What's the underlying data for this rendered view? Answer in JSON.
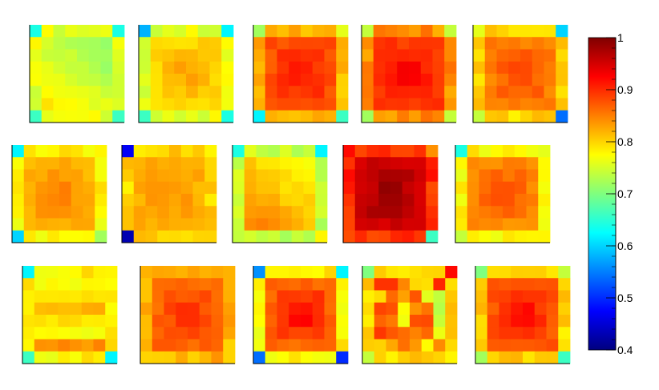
{
  "chart_data": {
    "type": "heatmap",
    "grid_size": 8,
    "panel_count": 15,
    "title": "",
    "colorbar": {
      "range": [
        0.4,
        1.0
      ],
      "ticks": [
        0.4,
        0.5,
        0.6,
        0.7,
        0.8,
        0.9,
        1
      ],
      "tick_labels": [
        "0.4",
        "0.5",
        "0.6",
        "0.7",
        "0.8",
        "0.9",
        "1"
      ],
      "colormap": "rainbow",
      "stops": [
        "#00007f",
        "#0000ff",
        "#007fff",
        "#00ffff",
        "#7fff7f",
        "#ffff00",
        "#ff7f00",
        "#ff0000",
        "#7f0000"
      ]
    },
    "panels": [
      {
        "corners": [
          0.64,
          0.64,
          0.66,
          0.66
        ],
        "edge": 0.76,
        "center": 0.74,
        "tilt": 0.05,
        "gradient": "diagonal"
      },
      {
        "corners": [
          0.58,
          0.62,
          0.66,
          0.64
        ],
        "edge": 0.76,
        "center": 0.83,
        "tilt": 0.0,
        "gradient": "radial"
      },
      {
        "corners": [
          0.72,
          0.76,
          0.62,
          0.66
        ],
        "edge": 0.82,
        "center": 0.92,
        "tilt": 0.0,
        "gradient": "radial"
      },
      {
        "corners": [
          0.74,
          0.74,
          0.72,
          0.74
        ],
        "edge": 0.84,
        "center": 0.93,
        "tilt": 0.0,
        "gradient": "radial"
      },
      {
        "corners": [
          0.76,
          0.6,
          0.74,
          0.54
        ],
        "edge": 0.8,
        "center": 0.89,
        "tilt": 0.0,
        "gradient": "radial"
      },
      {
        "corners": [
          0.62,
          0.78,
          0.6,
          0.72
        ],
        "edge": 0.78,
        "center": 0.85,
        "tilt": 0.0,
        "gradient": "radial"
      },
      {
        "corners": [
          0.47,
          0.78,
          0.43,
          0.8
        ],
        "edge": 0.8,
        "center": 0.84,
        "tilt": 0.0,
        "gradient": "radial"
      },
      {
        "corners": [
          0.64,
          0.62,
          0.74,
          0.78
        ],
        "edge": 0.74,
        "center": 0.8,
        "tilt": 0.05,
        "gradient": "diagonal"
      },
      {
        "corners": [
          0.92,
          0.84,
          0.88,
          0.66
        ],
        "edge": 0.9,
        "center": 0.99,
        "tilt": 0.0,
        "gradient": "radial"
      },
      {
        "corners": [
          0.64,
          0.76,
          0.74,
          0.78
        ],
        "edge": 0.78,
        "center": 0.89,
        "tilt": 0.0,
        "gradient": "radial"
      },
      {
        "corners": [
          0.62,
          0.78,
          0.66,
          0.62
        ],
        "edge": 0.78,
        "center": 0.79,
        "tilt": 0.0,
        "gradient": "stripes"
      },
      {
        "corners": [
          0.82,
          0.82,
          0.8,
          0.8
        ],
        "edge": 0.82,
        "center": 0.9,
        "tilt": 0.0,
        "gradient": "radial"
      },
      {
        "corners": [
          0.56,
          0.62,
          0.54,
          0.5
        ],
        "edge": 0.78,
        "center": 0.93,
        "tilt": 0.0,
        "gradient": "radial"
      },
      {
        "corners": [
          0.7,
          0.92,
          0.74,
          0.78
        ],
        "edge": 0.8,
        "center": 0.82,
        "tilt": 0.0,
        "gradient": "noisy"
      },
      {
        "corners": [
          0.7,
          0.74,
          0.72,
          0.66
        ],
        "edge": 0.8,
        "center": 0.93,
        "tilt": 0.0,
        "gradient": "radial"
      }
    ]
  }
}
